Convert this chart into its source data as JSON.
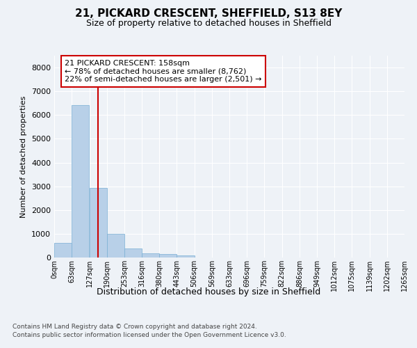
{
  "title1": "21, PICKARD CRESCENT, SHEFFIELD, S13 8EY",
  "title2": "Size of property relative to detached houses in Sheffield",
  "xlabel": "Distribution of detached houses by size in Sheffield",
  "ylabel": "Number of detached properties",
  "bar_color": "#b8d0e8",
  "bar_edge_color": "#7aafd4",
  "vline_color": "#cc0000",
  "vline_x": 158,
  "annotation_line1": "21 PICKARD CRESCENT: 158sqm",
  "annotation_line2": "← 78% of detached houses are smaller (8,762)",
  "annotation_line3": "22% of semi-detached houses are larger (2,501) →",
  "footer1": "Contains HM Land Registry data © Crown copyright and database right 2024.",
  "footer2": "Contains public sector information licensed under the Open Government Licence v3.0.",
  "bin_edges": [
    0,
    63,
    127,
    190,
    253,
    316,
    380,
    443,
    506,
    569,
    633,
    696,
    759,
    822,
    886,
    949,
    1012,
    1075,
    1139,
    1202,
    1265
  ],
  "bar_heights": [
    620,
    6420,
    2920,
    1000,
    380,
    190,
    145,
    90,
    0,
    0,
    0,
    0,
    0,
    0,
    0,
    0,
    0,
    0,
    0,
    0
  ],
  "ylim": [
    0,
    8500
  ],
  "yticks": [
    0,
    1000,
    2000,
    3000,
    4000,
    5000,
    6000,
    7000,
    8000
  ],
  "background_color": "#eef2f7",
  "grid_color": "#ffffff",
  "annotation_box_color": "#ffffff",
  "annotation_box_edge": "#cc0000",
  "title1_fontsize": 11,
  "title2_fontsize": 9,
  "ylabel_fontsize": 8,
  "xlabel_fontsize": 9,
  "ytick_fontsize": 8,
  "xtick_fontsize": 7,
  "footer_fontsize": 6.5
}
